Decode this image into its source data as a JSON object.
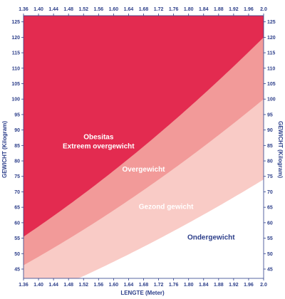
{
  "chart_data": {
    "type": "area",
    "x": [
      1.36,
      1.4,
      1.44,
      1.48,
      1.52,
      1.56,
      1.6,
      1.64,
      1.68,
      1.72,
      1.76,
      1.8,
      1.84,
      1.88,
      1.92,
      1.96,
      2.0
    ],
    "x_tick_labels": [
      "1.36",
      "1.40",
      "1.44",
      "1.48",
      "1.52",
      "1.56",
      "1.60",
      "1.64",
      "1.68",
      "1.72",
      "1.76",
      "1.80",
      "1.84",
      "1.88",
      "1.92",
      "1.96",
      "2.0"
    ],
    "y_ticks": [
      45,
      50,
      55,
      60,
      65,
      70,
      75,
      80,
      85,
      90,
      95,
      100,
      105,
      110,
      115,
      120,
      125
    ],
    "xlim": [
      1.36,
      2.0
    ],
    "ylim": [
      42,
      127
    ],
    "xlabel": "LENGTE (Meter)",
    "ylabel_left": "GEWICHT (Kilogram)",
    "ylabel_right": "GEWICHT (Kilogram)",
    "boundaries": [
      {
        "bmi": 18.5,
        "label": "Ondergewicht"
      },
      {
        "bmi": 25,
        "label": "Gezond gewicht"
      },
      {
        "bmi": 30,
        "label": "Overgewicht"
      }
    ],
    "region_labels": [
      {
        "lines": [
          "Obesitas",
          "Extreem overgewicht"
        ],
        "x": 1.56,
        "y": 87,
        "color": "#ffffff"
      },
      {
        "lines": [
          "Overgewicht"
        ],
        "x": 1.68,
        "y": 76.5,
        "color": "#ffffff"
      },
      {
        "lines": [
          "Gezond gewicht"
        ],
        "x": 1.74,
        "y": 64.5,
        "color": "#ffffff"
      },
      {
        "lines": [
          "Ondergewicht"
        ],
        "x": 1.86,
        "y": 54.5,
        "color": "#2d3f8a"
      }
    ],
    "colors": {
      "obesitas": "#e32b50",
      "overgewicht": "#f29a99",
      "gezond": "#f9cbc6",
      "ondergewicht": "#ffffff",
      "axis": "#2d3f8a"
    }
  }
}
